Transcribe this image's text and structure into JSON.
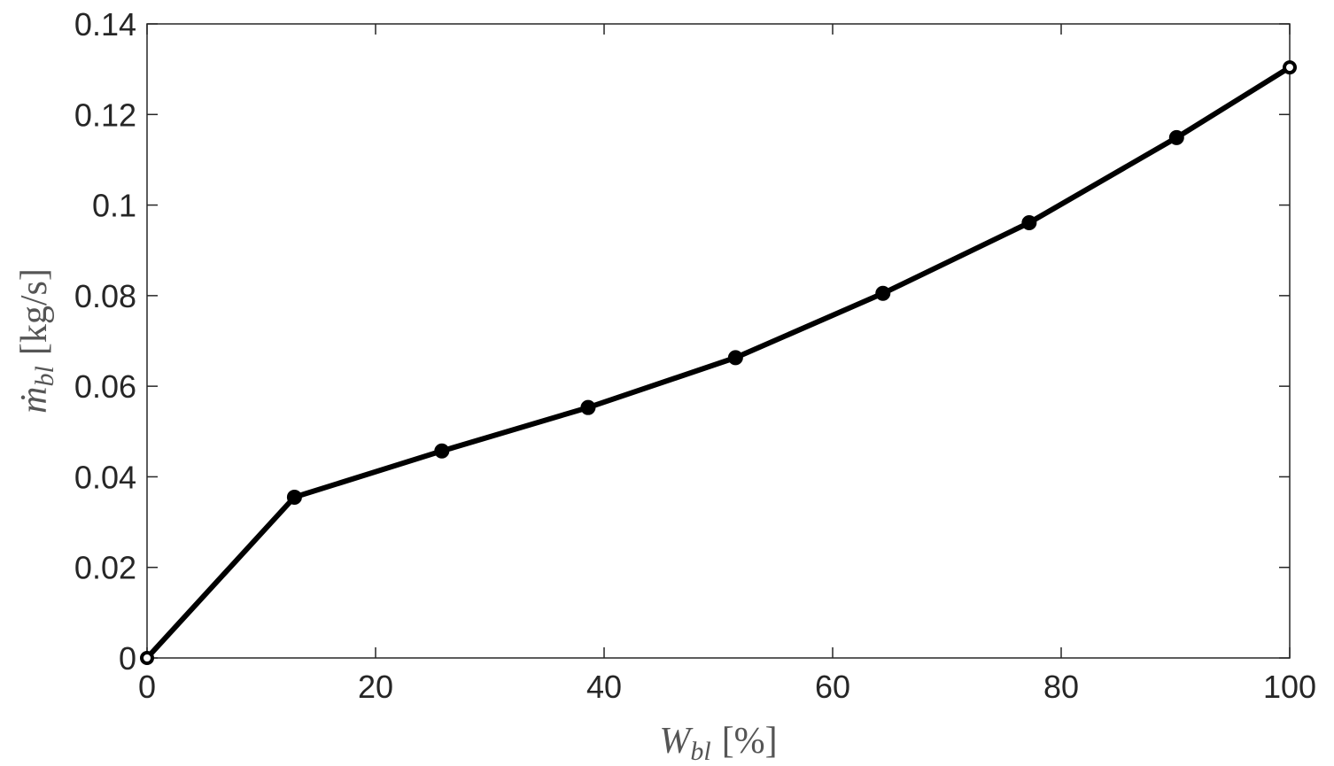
{
  "chart_data": {
    "type": "line",
    "x": [
      0,
      12.9,
      25.8,
      38.6,
      51.5,
      64.4,
      77.2,
      90.1,
      100
    ],
    "series": [
      {
        "values": [
          0,
          0.0355,
          0.0457,
          0.0553,
          0.0663,
          0.0805,
          0.0961,
          0.1149,
          0.1304
        ],
        "color": "#000000",
        "marker_fill": [
          "open",
          "filled",
          "filled",
          "filled",
          "filled",
          "filled",
          "filled",
          "filled",
          "open"
        ]
      }
    ],
    "xlim": [
      0,
      100
    ],
    "ylim": [
      0,
      0.14
    ],
    "x_ticks": [
      "0",
      "20",
      "40",
      "60",
      "80",
      "100"
    ],
    "y_ticks": [
      "0",
      "0.02",
      "0.04",
      "0.06",
      "0.08",
      "0.1",
      "0.12",
      "0.14"
    ],
    "xlabel": {
      "symbol": "W",
      "subscript": "bl",
      "unit": "[%]"
    },
    "ylabel": {
      "symbol": "ṁ",
      "subscript": "bl",
      "unit": "[kg/s]"
    },
    "grid": false,
    "legend": "none"
  }
}
